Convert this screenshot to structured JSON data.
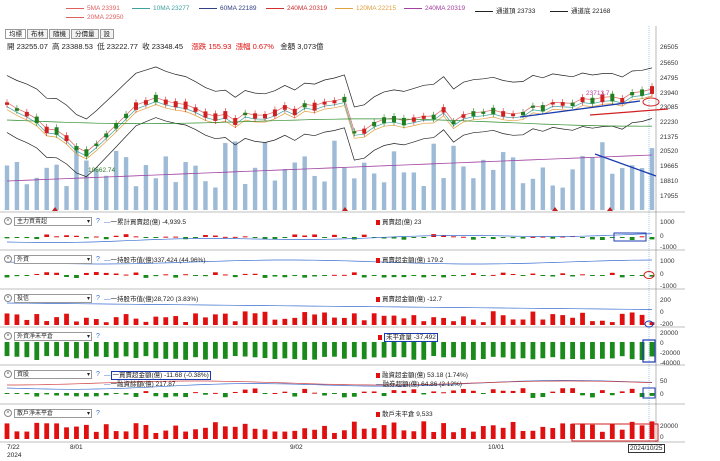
{
  "legend": {
    "ma5": {
      "label": "5MA 23391",
      "color": "#e06060"
    },
    "ma10": {
      "label": "10MA 23277",
      "color": "#40a0a0"
    },
    "ma60": {
      "label": "60MA 22189",
      "color": "#304080"
    },
    "ma240": {
      "label": "240MA 20319",
      "color": "#d03030"
    },
    "ma120": {
      "label": "120MA 22215",
      "color": "#e0a040"
    },
    "ma240b": {
      "label": "240MA 20319",
      "color": "#a040a0"
    },
    "upper": {
      "label": "通道頂 23733",
      "color": "#222222"
    },
    "lower": {
      "label": "通道底 22168",
      "color": "#222222"
    },
    "ma20": {
      "label": "20MA 22950",
      "color": "#e06060"
    }
  },
  "tabs": [
    "均標",
    "布林",
    "隨機",
    "分價量",
    "設"
  ],
  "ohlc": {
    "open": "開 23255.07",
    "high": "高 23388.53",
    "low": "低 23222.77",
    "close": "收 23348.45",
    "change": "漲跌 155.93",
    "pct": "漲幅 0.67%",
    "amount": "金額 3,073億"
  },
  "price_axis": [
    "26505",
    "25650",
    "24795",
    "23940",
    "23085",
    "22230",
    "21375",
    "20520",
    "19665",
    "18810",
    "17955"
  ],
  "annotations": {
    "high_mark": "23713.7",
    "low_mark": "19662.74"
  },
  "indicators": [
    {
      "name": "主力買賣超",
      "left": "一累計買賣超(億) -4,939.5",
      "right": "買賣超(億) 23",
      "axis": [
        "1000",
        "0",
        "-1000"
      ]
    },
    {
      "name": "外資",
      "left": "一持股市值(億)337,424 (44.96%)",
      "right": "買賣超金額(億) 179.2",
      "axis": [
        "1000",
        "0",
        "-1000"
      ]
    },
    {
      "name": "投信",
      "left": "一持股市值(億)28,720 (3.83%)",
      "right": "買賣超金額(億) -12.7",
      "axis": [
        "200",
        "0",
        "-200"
      ]
    },
    {
      "name": "外資淨未平倉",
      "left": "",
      "right": "未平倉量 -37,492",
      "axis": [
        "20000",
        "0",
        "-20000",
        "-40000"
      ]
    },
    {
      "name": "資股",
      "left": "一買賣超金額(億) -11.68 (-0.38%)",
      "left2": "一融資餘額(億) 217.87",
      "right": "融資超金額(億) 53.18 (1.74%)",
      "right2": "融券超額(億) 64.86 (2.12%)",
      "axis": [
        "50",
        "0"
      ]
    },
    {
      "name": "散戶淨未平倉",
      "left": "",
      "right": "散戶未平倉 9,533",
      "axis": [
        "20000",
        "0"
      ]
    }
  ],
  "dates": {
    "d1": "7/22",
    "d1y": "2024",
    "d2": "8/01",
    "d3": "9/02",
    "d4": "10/01",
    "d5": "2024/10/25"
  }
}
